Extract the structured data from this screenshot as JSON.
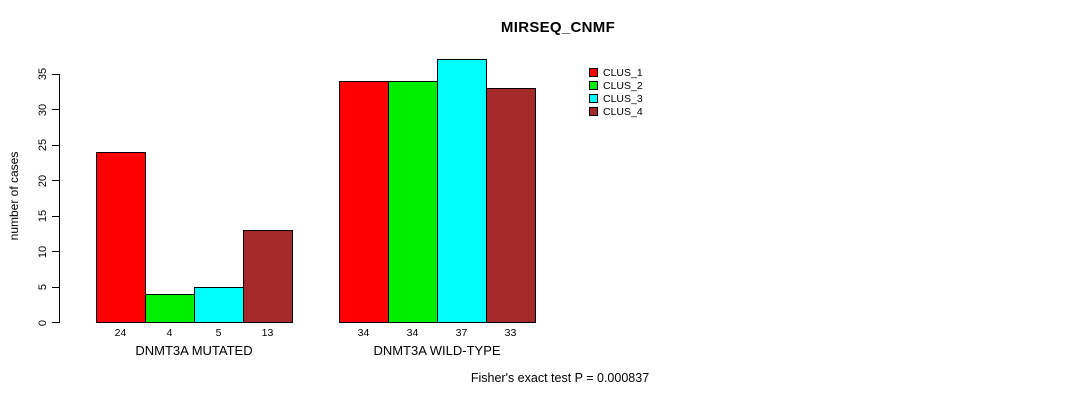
{
  "title": "MIRSEQ_CNMF",
  "ylabel": "number of cases",
  "footer": "Fisher's exact test P = 0.000837",
  "chart_data": {
    "type": "bar",
    "title": "MIRSEQ_CNMF",
    "xlabel": "",
    "ylabel": "number of cases",
    "ylim": [
      0,
      35
    ],
    "yticks": [
      0,
      5,
      10,
      15,
      20,
      25,
      30,
      35
    ],
    "grid": false,
    "legend_position": "top-right",
    "categories": [
      "DNMT3A MUTATED",
      "DNMT3A WILD-TYPE"
    ],
    "series": [
      {
        "name": "CLUS_1",
        "color": "#ff0000",
        "values": [
          24,
          34
        ]
      },
      {
        "name": "CLUS_2",
        "color": "#00ee00",
        "values": [
          4,
          34
        ]
      },
      {
        "name": "CLUS_3",
        "color": "#00ffff",
        "values": [
          5,
          37
        ]
      },
      {
        "name": "CLUS_4",
        "color": "#a52a2a",
        "values": [
          13,
          33
        ]
      }
    ],
    "bar_value_labels": [
      [
        24,
        4,
        5,
        13
      ],
      [
        34,
        34,
        37,
        33
      ]
    ],
    "annotation": "Fisher's exact test P = 0.000837"
  },
  "legend": {
    "items": [
      {
        "label": "CLUS_1",
        "color": "#ff0000"
      },
      {
        "label": "CLUS_2",
        "color": "#00ee00"
      },
      {
        "label": "CLUS_3",
        "color": "#00ffff"
      },
      {
        "label": "CLUS_4",
        "color": "#a52a2a"
      }
    ]
  }
}
